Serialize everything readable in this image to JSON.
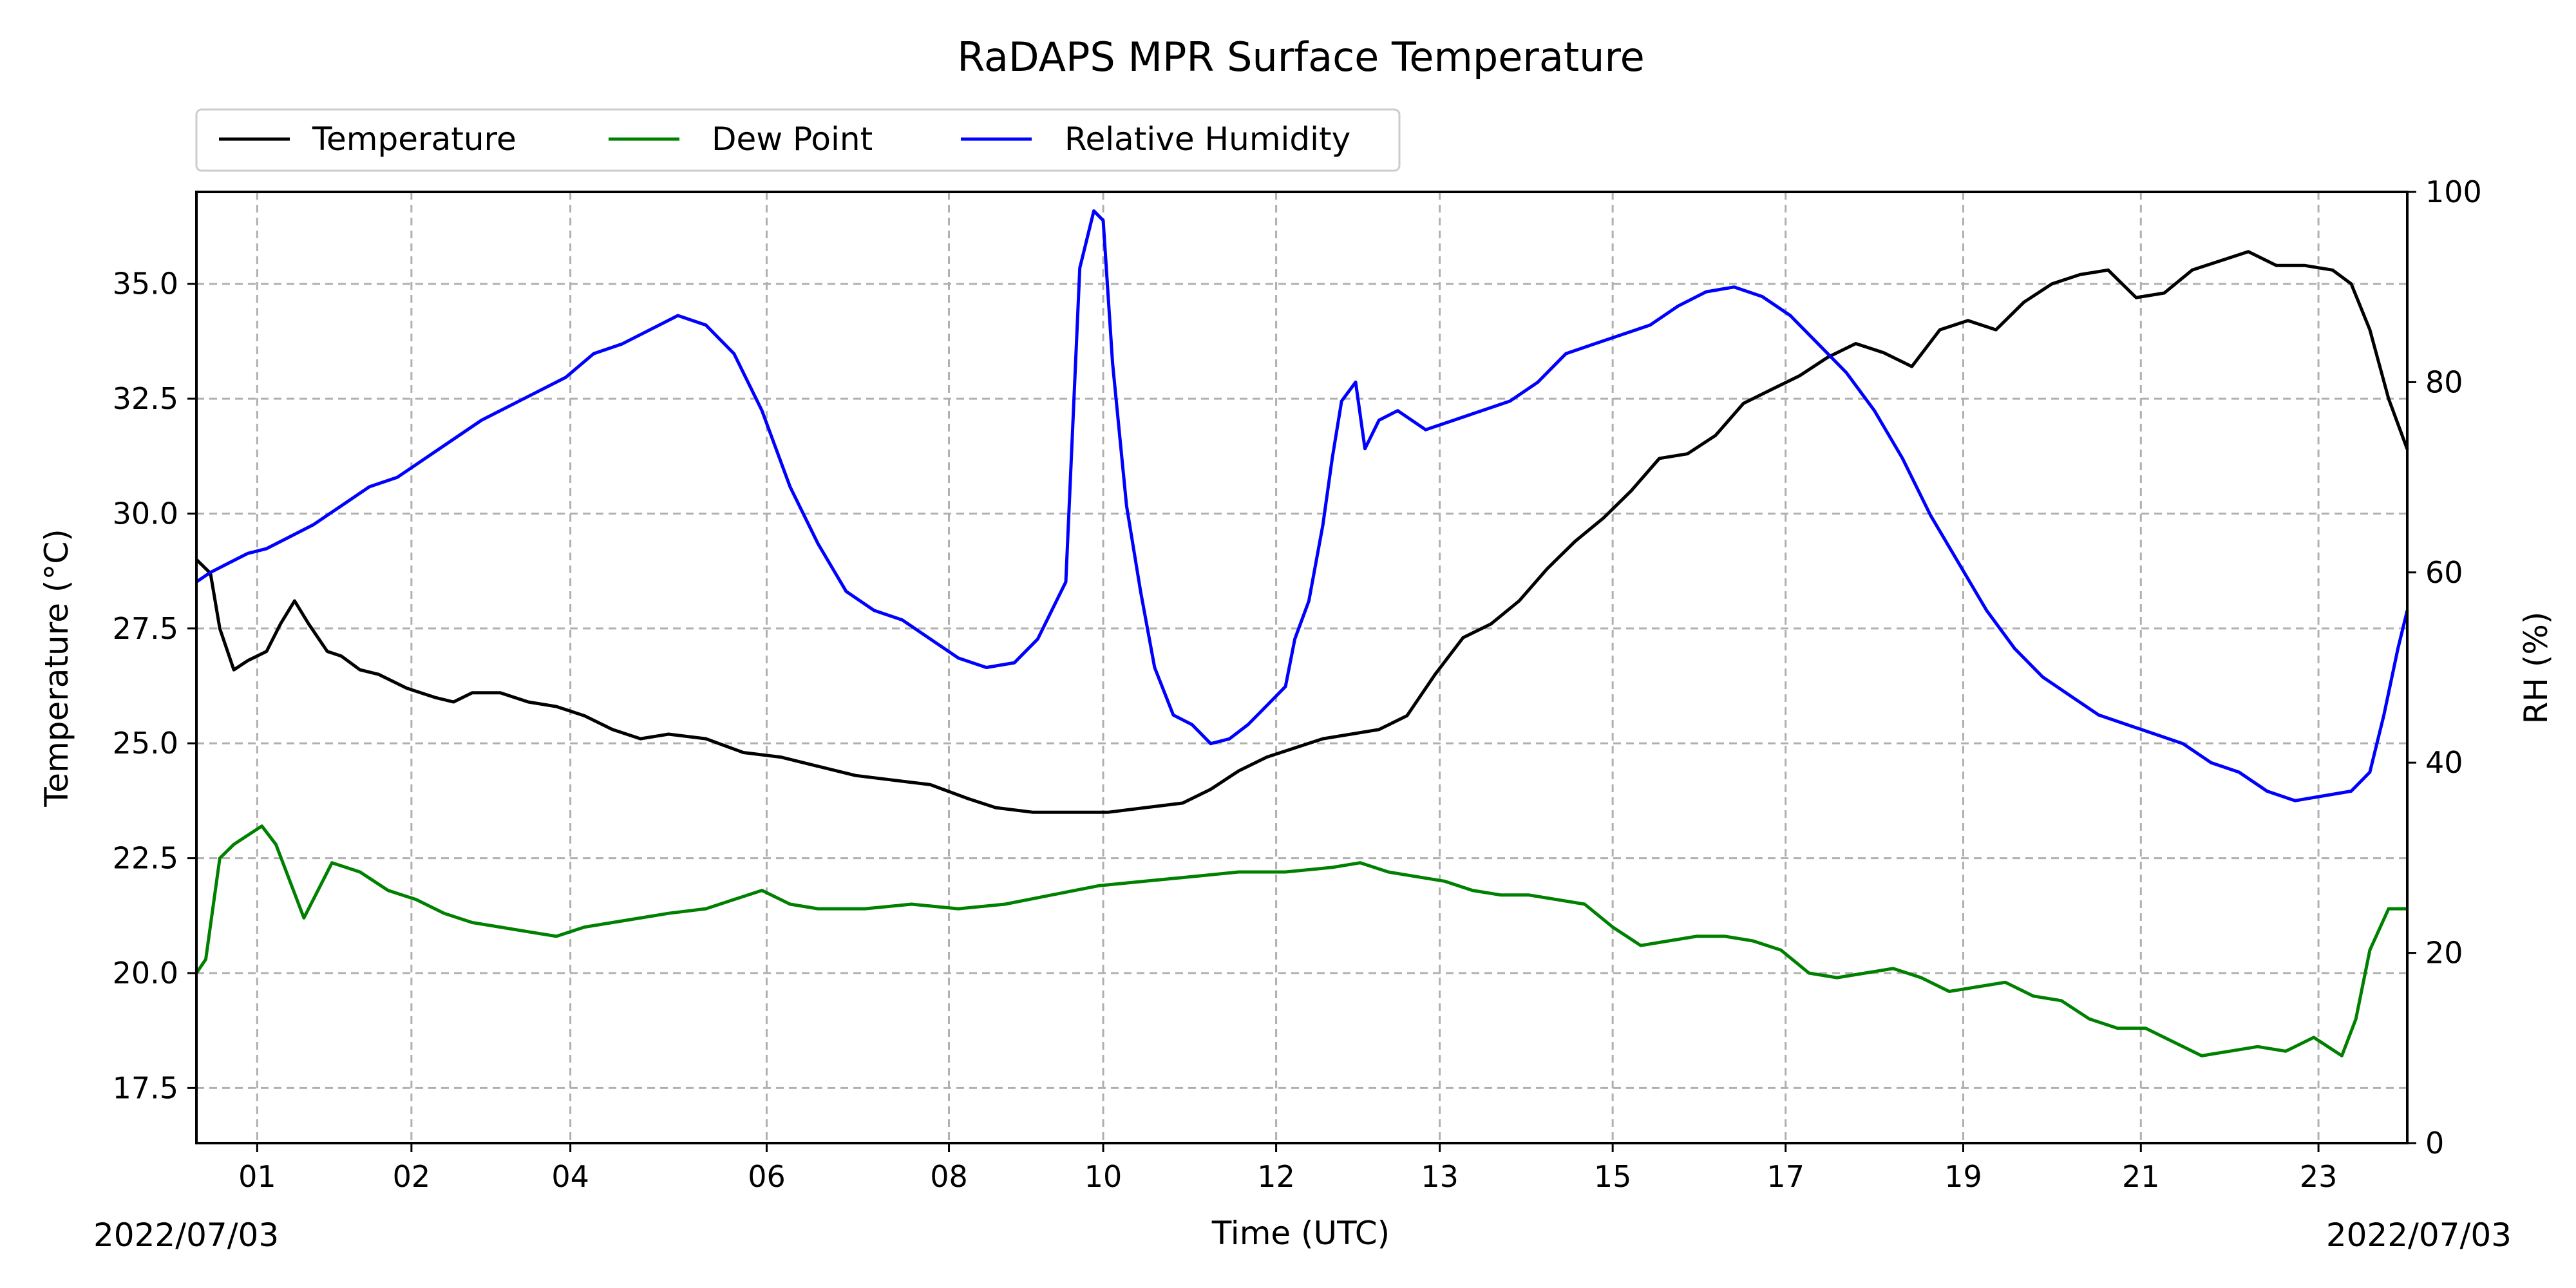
{
  "chart_data": {
    "type": "line",
    "title": "RaDAPS MPR Surface Temperature",
    "xlabel": "Time (UTC)",
    "ylabel_left": "Temperature ($^\\circ$C)",
    "ylabel_left_display": "Temperature (°C)",
    "ylabel_right": "RH (%)",
    "date_start": "2022/07/03",
    "date_end": "2022/07/03",
    "xlim": [
      0.35,
      24.0
    ],
    "ylim_left": [
      16.3,
      37.0
    ],
    "ylim_right": [
      0,
      100
    ],
    "x_ticks": [
      {
        "label": "01",
        "hour": 1.0
      },
      {
        "label": "02",
        "hour": 2.65
      },
      {
        "label": "04",
        "hour": 4.35
      },
      {
        "label": "06",
        "hour": 6.45
      },
      {
        "label": "08",
        "hour": 8.4
      },
      {
        "label": "10",
        "hour": 10.05
      },
      {
        "label": "12",
        "hour": 11.9
      },
      {
        "label": "13",
        "hour": 13.65
      },
      {
        "label": "15",
        "hour": 15.5
      },
      {
        "label": "17",
        "hour": 17.35
      },
      {
        "label": "19",
        "hour": 19.25
      },
      {
        "label": "21",
        "hour": 21.15
      },
      {
        "label": "23",
        "hour": 23.05
      }
    ],
    "y_ticks_left": [
      {
        "label": "17.5",
        "value": 17.5
      },
      {
        "label": "20.0",
        "value": 20.0
      },
      {
        "label": "22.5",
        "value": 22.5
      },
      {
        "label": "25.0",
        "value": 25.0
      },
      {
        "label": "27.5",
        "value": 27.5
      },
      {
        "label": "30.0",
        "value": 30.0
      },
      {
        "label": "32.5",
        "value": 32.5
      },
      {
        "label": "35.0",
        "value": 35.0
      }
    ],
    "y_ticks_right": [
      {
        "label": "0",
        "value": 0
      },
      {
        "label": "20",
        "value": 20
      },
      {
        "label": "40",
        "value": 40
      },
      {
        "label": "60",
        "value": 60
      },
      {
        "label": "80",
        "value": 80
      },
      {
        "label": "100",
        "value": 100
      }
    ],
    "grid": true,
    "legend_position": "top-left, above plot",
    "series": [
      {
        "name": "Temperature",
        "axis": "left",
        "color": "#000000",
        "x": [
          0.35,
          0.5,
          0.6,
          0.75,
          0.9,
          1.1,
          1.25,
          1.4,
          1.55,
          1.75,
          1.9,
          2.1,
          2.3,
          2.6,
          2.9,
          3.1,
          3.3,
          3.6,
          3.9,
          4.2,
          4.5,
          4.8,
          5.1,
          5.4,
          5.8,
          6.2,
          6.6,
          7.0,
          7.4,
          7.8,
          8.2,
          8.6,
          8.9,
          9.3,
          9.7,
          10.1,
          10.5,
          10.9,
          11.2,
          11.5,
          11.8,
          12.1,
          12.4,
          12.7,
          13.0,
          13.3,
          13.6,
          13.9,
          14.2,
          14.5,
          14.8,
          15.1,
          15.4,
          15.7,
          16.0,
          16.3,
          16.6,
          16.9,
          17.2,
          17.5,
          17.8,
          18.1,
          18.4,
          18.7,
          19.0,
          19.3,
          19.6,
          19.9,
          20.2,
          20.5,
          20.8,
          21.1,
          21.4,
          21.7,
          22.0,
          22.3,
          22.6,
          22.9,
          23.2,
          23.4,
          23.6,
          23.8,
          24.0
        ],
        "y": [
          29.0,
          28.7,
          27.5,
          26.6,
          26.8,
          27.0,
          27.6,
          28.1,
          27.6,
          27.0,
          26.9,
          26.6,
          26.5,
          26.2,
          26.0,
          25.9,
          26.1,
          26.1,
          25.9,
          25.8,
          25.6,
          25.3,
          25.1,
          25.2,
          25.1,
          24.8,
          24.7,
          24.5,
          24.3,
          24.2,
          24.1,
          23.8,
          23.6,
          23.5,
          23.5,
          23.5,
          23.6,
          23.7,
          24.0,
          24.4,
          24.7,
          24.9,
          25.1,
          25.2,
          25.3,
          25.6,
          26.5,
          27.3,
          27.6,
          28.1,
          28.8,
          29.4,
          29.9,
          30.5,
          31.2,
          31.3,
          31.7,
          32.4,
          32.7,
          33.0,
          33.4,
          33.7,
          33.5,
          33.2,
          34.0,
          34.2,
          34.0,
          34.6,
          35.0,
          35.2,
          35.3,
          34.7,
          34.8,
          35.3,
          35.5,
          35.7,
          35.4,
          35.4,
          35.3,
          35.0,
          34.0,
          32.5,
          31.4
        ]
      },
      {
        "name": "Dew Point",
        "axis": "left",
        "color": "#008000",
        "x": [
          0.35,
          0.45,
          0.6,
          0.75,
          0.9,
          1.05,
          1.2,
          1.35,
          1.5,
          1.65,
          1.8,
          1.95,
          2.1,
          2.4,
          2.7,
          3.0,
          3.3,
          3.6,
          3.9,
          4.2,
          4.5,
          4.8,
          5.1,
          5.4,
          5.8,
          6.1,
          6.4,
          6.7,
          7.0,
          7.5,
          8.0,
          8.5,
          9.0,
          9.5,
          10.0,
          10.5,
          11.0,
          11.5,
          12.0,
          12.5,
          12.8,
          13.1,
          13.4,
          13.7,
          14.0,
          14.3,
          14.6,
          14.9,
          15.2,
          15.5,
          15.8,
          16.1,
          16.4,
          16.7,
          17.0,
          17.3,
          17.6,
          17.9,
          18.2,
          18.5,
          18.8,
          19.1,
          19.4,
          19.7,
          20.0,
          20.3,
          20.6,
          20.9,
          21.2,
          21.5,
          21.8,
          22.1,
          22.4,
          22.7,
          23.0,
          23.3,
          23.45,
          23.6,
          23.8,
          24.0
        ],
        "y": [
          20.0,
          20.3,
          22.5,
          22.8,
          23.0,
          23.2,
          22.8,
          22.0,
          21.2,
          21.8,
          22.4,
          22.3,
          22.2,
          21.8,
          21.6,
          21.3,
          21.1,
          21.0,
          20.9,
          20.8,
          21.0,
          21.1,
          21.2,
          21.3,
          21.4,
          21.6,
          21.8,
          21.5,
          21.4,
          21.4,
          21.5,
          21.4,
          21.5,
          21.7,
          21.9,
          22.0,
          22.1,
          22.2,
          22.2,
          22.3,
          22.4,
          22.2,
          22.1,
          22.0,
          21.8,
          21.7,
          21.7,
          21.6,
          21.5,
          21.0,
          20.6,
          20.7,
          20.8,
          20.8,
          20.7,
          20.5,
          20.0,
          19.9,
          20.0,
          20.1,
          19.9,
          19.6,
          19.7,
          19.8,
          19.5,
          19.4,
          19.0,
          18.8,
          18.8,
          18.5,
          18.2,
          18.3,
          18.4,
          18.3,
          18.6,
          18.2,
          19.0,
          20.5,
          21.4,
          21.4
        ]
      },
      {
        "name": "Relative Humidity",
        "axis": "right",
        "color": "#0000ff",
        "x": [
          0.35,
          0.5,
          0.7,
          0.9,
          1.1,
          1.3,
          1.6,
          1.9,
          2.2,
          2.5,
          2.8,
          3.1,
          3.4,
          3.7,
          4.0,
          4.3,
          4.6,
          4.9,
          5.2,
          5.5,
          5.8,
          6.1,
          6.4,
          6.7,
          7.0,
          7.3,
          7.6,
          7.9,
          8.2,
          8.5,
          8.8,
          9.1,
          9.35,
          9.5,
          9.65,
          9.8,
          9.95,
          10.05,
          10.15,
          10.3,
          10.45,
          10.6,
          10.8,
          11.0,
          11.2,
          11.4,
          11.6,
          11.8,
          12.0,
          12.1,
          12.25,
          12.4,
          12.5,
          12.6,
          12.75,
          12.85,
          13.0,
          13.2,
          13.5,
          13.8,
          14.1,
          14.4,
          14.7,
          15.0,
          15.3,
          15.6,
          15.9,
          16.2,
          16.5,
          16.8,
          17.1,
          17.4,
          17.7,
          18.0,
          18.3,
          18.6,
          18.9,
          19.2,
          19.5,
          19.8,
          20.1,
          20.4,
          20.7,
          21.0,
          21.3,
          21.6,
          21.9,
          22.2,
          22.5,
          22.8,
          23.1,
          23.4,
          23.6,
          23.75,
          23.9,
          24.0
        ],
        "y": [
          59,
          60,
          61,
          62,
          62.5,
          63.5,
          65,
          67,
          69,
          70,
          72,
          74,
          76,
          77.5,
          79,
          80.5,
          83,
          84,
          85.5,
          87,
          86,
          83,
          77,
          69,
          63,
          58,
          56,
          55,
          53,
          51,
          50,
          50.5,
          53,
          56,
          59,
          92,
          98,
          97,
          82,
          67,
          58,
          50,
          45,
          44,
          42,
          42.5,
          44,
          46,
          48,
          53,
          57,
          65,
          72,
          78,
          80,
          73,
          76,
          77,
          75,
          76,
          77,
          78,
          80,
          83,
          84,
          85,
          86,
          88,
          89.5,
          90,
          89,
          87,
          84,
          81,
          77,
          72,
          66,
          61,
          56,
          52,
          49,
          47,
          45,
          44,
          43,
          42,
          40,
          39,
          37,
          36,
          36.5,
          37,
          39,
          45,
          52,
          56
        ]
      }
    ]
  }
}
